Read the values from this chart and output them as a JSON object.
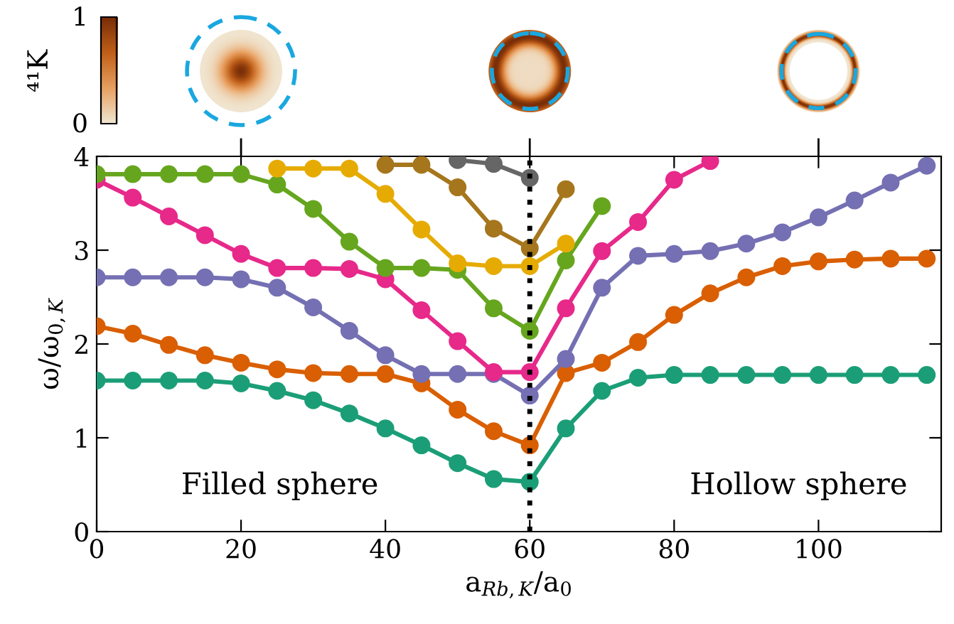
{
  "chart_data": {
    "type": "line",
    "xlabel": "a$_{Rb,K}$/a$_{0}$",
    "ylabel": "ω/ω$_{0,K}$",
    "x": [
      0,
      5,
      10,
      15,
      20,
      25,
      30,
      35,
      40,
      45,
      50,
      55,
      60,
      65,
      70,
      75,
      80,
      85,
      90,
      95,
      100,
      105,
      110,
      115
    ],
    "series": [
      {
        "color": "#1b9e77",
        "values": [
          1.61,
          1.61,
          1.61,
          1.61,
          1.58,
          1.5,
          1.4,
          1.26,
          1.1,
          0.92,
          0.73,
          0.56,
          0.53,
          1.1,
          1.5,
          1.64,
          1.67,
          1.67,
          1.67,
          1.67,
          1.67,
          1.67,
          1.67,
          1.67
        ]
      },
      {
        "color": "#d95f02",
        "values": [
          2.19,
          2.11,
          1.99,
          1.88,
          1.8,
          1.73,
          1.69,
          1.68,
          1.68,
          1.58,
          1.3,
          1.07,
          0.92,
          1.69,
          1.8,
          2.02,
          2.31,
          2.54,
          2.71,
          2.83,
          2.88,
          2.9,
          2.91,
          2.91
        ]
      },
      {
        "color": "#7570b3",
        "values": [
          2.71,
          2.71,
          2.71,
          2.71,
          2.69,
          2.6,
          2.39,
          2.14,
          1.88,
          1.68,
          1.68,
          1.68,
          1.45,
          1.84,
          2.6,
          2.94,
          2.96,
          2.99,
          3.07,
          3.19,
          3.35,
          3.53,
          3.72,
          3.9
        ]
      },
      {
        "color": "#e7298a",
        "values": [
          3.75,
          3.56,
          3.36,
          3.16,
          2.96,
          2.81,
          2.81,
          2.8,
          2.69,
          2.36,
          2.03,
          1.7,
          1.7,
          2.38,
          2.99,
          3.3,
          3.75,
          3.95,
          null,
          null,
          null,
          null,
          null,
          null
        ]
      },
      {
        "color": "#66a61e",
        "values": [
          3.81,
          3.81,
          3.81,
          3.81,
          3.81,
          3.7,
          3.44,
          3.09,
          2.81,
          2.81,
          2.79,
          2.38,
          2.14,
          2.89,
          3.47,
          null,
          null,
          null,
          null,
          null,
          null,
          null,
          null,
          null
        ]
      },
      {
        "color": "#e6ab02",
        "values": [
          null,
          null,
          null,
          null,
          null,
          3.87,
          3.87,
          3.87,
          3.6,
          3.22,
          2.86,
          2.83,
          2.83,
          3.07,
          null,
          null,
          null,
          null,
          null,
          null,
          null,
          null,
          null,
          null
        ]
      },
      {
        "color": "#a6761d",
        "values": [
          null,
          null,
          null,
          null,
          null,
          null,
          null,
          null,
          3.91,
          3.91,
          3.67,
          3.23,
          3.02,
          3.65,
          null,
          null,
          null,
          null,
          null,
          null,
          null,
          null,
          null,
          null
        ]
      },
      {
        "color": "#666666",
        "values": [
          null,
          null,
          null,
          null,
          null,
          null,
          null,
          null,
          null,
          null,
          3.96,
          3.92,
          3.77,
          null,
          null,
          null,
          null,
          null,
          null,
          null,
          null,
          null,
          null,
          null
        ]
      }
    ],
    "xlim": [
      0,
      117
    ],
    "ylim": [
      0,
      4
    ],
    "xticks": [
      0,
      20,
      40,
      60,
      80,
      100
    ],
    "yticks": [
      0,
      1,
      2,
      3,
      4
    ],
    "marker": "circle",
    "line_style": "solid",
    "ref_lines": [
      {
        "axis": "x",
        "value": 60,
        "color": "#000000",
        "line_style": "dotted"
      }
    ],
    "annotations": [
      "Filled sphere",
      "Hollow sphere",
      "⁴¹K",
      "0",
      "1"
    ]
  }
}
